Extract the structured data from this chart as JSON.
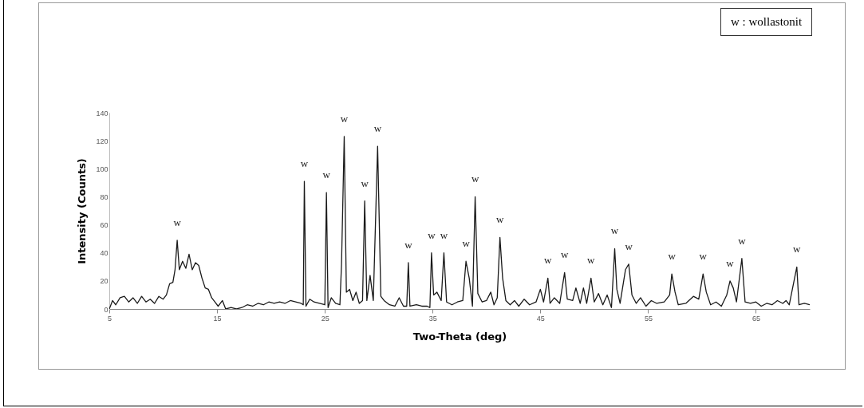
{
  "chart_data": {
    "type": "line",
    "xlabel": "Two-Theta (deg)",
    "ylabel": "Intensity (Counts)",
    "xlim": [
      5,
      70
    ],
    "xticks": [
      5,
      15,
      25,
      35,
      45,
      55,
      65
    ],
    "ylim": [
      0,
      140
    ],
    "yticks": [
      0,
      20,
      40,
      60,
      80,
      100,
      120,
      140
    ],
    "x": [
      5,
      5.3,
      5.6,
      6,
      6.4,
      6.8,
      7.2,
      7.6,
      8,
      8.4,
      8.8,
      9.2,
      9.6,
      10,
      10.3,
      10.6,
      10.9,
      11.1,
      11.3,
      11.5,
      11.8,
      12.1,
      12.4,
      12.7,
      13,
      13.3,
      13.6,
      13.9,
      14.2,
      14.5,
      14.8,
      15.1,
      15.5,
      15.8,
      16.3,
      16.8,
      17.3,
      17.8,
      18.3,
      18.8,
      19.3,
      19.8,
      20.3,
      20.8,
      21.3,
      21.8,
      22.3,
      22.8,
      23.0,
      23.1,
      23.25,
      23.6,
      24,
      24.5,
      25.0,
      25.15,
      25.3,
      25.6,
      26,
      26.4,
      26.55,
      26.8,
      27,
      27.3,
      27.6,
      27.9,
      28.2,
      28.5,
      28.7,
      28.9,
      29.2,
      29.5,
      29.9,
      30.2,
      30.5,
      31,
      31.5,
      31.9,
      32.3,
      32.6,
      32.75,
      32.9,
      33.5,
      34,
      34.5,
      34.75,
      34.9,
      35.1,
      35.4,
      35.8,
      36.05,
      36.3,
      36.8,
      37.3,
      37.8,
      38.1,
      38.4,
      38.7,
      38.95,
      39.2,
      39.6,
      40,
      40.4,
      40.7,
      41.0,
      41.25,
      41.5,
      41.8,
      42.2,
      42.6,
      43,
      43.5,
      44,
      44.6,
      45,
      45.3,
      45.7,
      45.9,
      46.3,
      46.8,
      47.25,
      47.5,
      48,
      48.3,
      48.7,
      49,
      49.3,
      49.7,
      50,
      50.4,
      50.8,
      51.2,
      51.6,
      51.9,
      52.1,
      52.4,
      52.9,
      53.2,
      53.5,
      53.9,
      54.3,
      54.8,
      55.3,
      55.8,
      56.5,
      57.0,
      57.2,
      57.5,
      57.8,
      58.5,
      59.2,
      59.7,
      60.1,
      60.4,
      60.8,
      61.3,
      61.8,
      62.3,
      62.6,
      62.9,
      63.2,
      63.7,
      64,
      64.5,
      65,
      65.5,
      66,
      66.5,
      67,
      67.5,
      67.8,
      68.1,
      68.8,
      69,
      69.5,
      70
    ],
    "series": [
      {
        "color": "#1a1a1a",
        "values": [
          0,
          6,
          3,
          8,
          9,
          5,
          8,
          4,
          9,
          5,
          7,
          4,
          9,
          7,
          10,
          18,
          19,
          28,
          49,
          28,
          34,
          29,
          39,
          28,
          33,
          31,
          22,
          15,
          14,
          8,
          5,
          2,
          6,
          0,
          1,
          0,
          1,
          3,
          2,
          4,
          3,
          5,
          4,
          5,
          4,
          6,
          5,
          4,
          3,
          91,
          2,
          7,
          5,
          4,
          3,
          83,
          1,
          8,
          4,
          3,
          32,
          123,
          12,
          14,
          6,
          12,
          4,
          6,
          77,
          6,
          24,
          6,
          116,
          9,
          6,
          3,
          2,
          8,
          2,
          2,
          33,
          2,
          3,
          2,
          2,
          1,
          40,
          10,
          12,
          6,
          40,
          5,
          3,
          5,
          6,
          34,
          22,
          2,
          80,
          11,
          5,
          6,
          12,
          3,
          8,
          51,
          22,
          6,
          3,
          6,
          2,
          7,
          3,
          5,
          14,
          5,
          22,
          4,
          8,
          4,
          26,
          7,
          6,
          15,
          4,
          15,
          4,
          22,
          5,
          11,
          3,
          10,
          1,
          43,
          14,
          4,
          28,
          32,
          10,
          4,
          8,
          2,
          6,
          4,
          5,
          10,
          25,
          12,
          3,
          4,
          9,
          7,
          25,
          12,
          3,
          5,
          2,
          10,
          20,
          15,
          5,
          36,
          5,
          4,
          5,
          2,
          4,
          3,
          6,
          4,
          6,
          3,
          30,
          3,
          4,
          3
        ]
      }
    ],
    "annotations": [
      "w : wollastonit",
      {
        "text": "w",
        "x": 11.3,
        "y": 49
      },
      {
        "text": "w",
        "x": 23.1,
        "y": 91
      },
      {
        "text": "w",
        "x": 25.15,
        "y": 83
      },
      {
        "text": "w",
        "x": 26.8,
        "y": 123
      },
      {
        "text": "w",
        "x": 28.7,
        "y": 77
      },
      {
        "text": "w",
        "x": 29.9,
        "y": 116
      },
      {
        "text": "w",
        "x": 32.75,
        "y": 33
      },
      {
        "text": "w",
        "x": 34.9,
        "y": 40
      },
      {
        "text": "w",
        "x": 36.05,
        "y": 40
      },
      {
        "text": "w",
        "x": 38.1,
        "y": 34
      },
      {
        "text": "w",
        "x": 38.95,
        "y": 80
      },
      {
        "text": "w",
        "x": 41.25,
        "y": 51
      },
      {
        "text": "w",
        "x": 45.7,
        "y": 22
      },
      {
        "text": "w",
        "x": 47.25,
        "y": 26
      },
      {
        "text": "w",
        "x": 49.7,
        "y": 22
      },
      {
        "text": "w",
        "x": 51.9,
        "y": 43
      },
      {
        "text": "w",
        "x": 53.2,
        "y": 32
      },
      {
        "text": "w",
        "x": 57.2,
        "y": 25
      },
      {
        "text": "w",
        "x": 60.1,
        "y": 25
      },
      {
        "text": "w",
        "x": 62.6,
        "y": 20
      },
      {
        "text": "w",
        "x": 63.7,
        "y": 36
      },
      {
        "text": "w",
        "x": 68.8,
        "y": 30
      }
    ],
    "line_style": "solid"
  }
}
